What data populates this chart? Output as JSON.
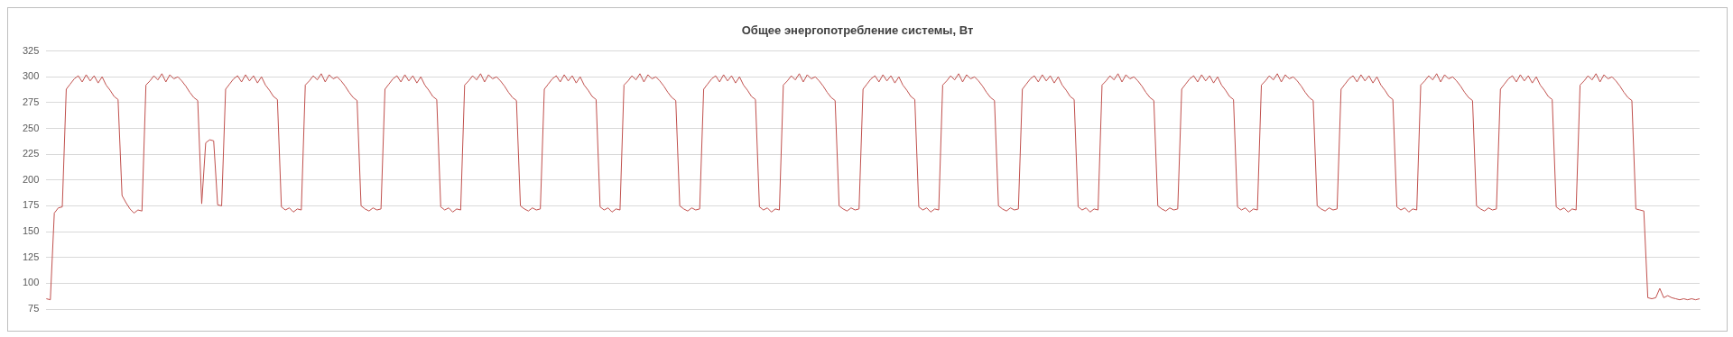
{
  "chart_data": {
    "type": "line",
    "title": "Общее энергопотребление системы, Вт",
    "categories": [
      null,
      null,
      null,
      null,
      null,
      null,
      null,
      null,
      null,
      null,
      null,
      null,
      null,
      null,
      null,
      null,
      null,
      null,
      null,
      null,
      null,
      null,
      null,
      null,
      null,
      null,
      null,
      null,
      null,
      null,
      null,
      null,
      null,
      null,
      null,
      null,
      null,
      null,
      null,
      null,
      null,
      null,
      null,
      null,
      null,
      null,
      null,
      null,
      null,
      null,
      null,
      null,
      null,
      null,
      null,
      null,
      null,
      null,
      null,
      null,
      null,
      null,
      null,
      null,
      null,
      null,
      null,
      null,
      null,
      null,
      null,
      null,
      null,
      null,
      null,
      null,
      null,
      null,
      null,
      null,
      null,
      null,
      null,
      null,
      null,
      null,
      null,
      null,
      null,
      null,
      null,
      null,
      null,
      null,
      null,
      null,
      null,
      null,
      null,
      null,
      null,
      null,
      null,
      null,
      null,
      null,
      null,
      null,
      null,
      null,
      null,
      null,
      null,
      null,
      null,
      null,
      null,
      null,
      null,
      null,
      null,
      null,
      null,
      null,
      null,
      null,
      null,
      null,
      null,
      null,
      null,
      null,
      null,
      null,
      null,
      null,
      null,
      null,
      null,
      null,
      null,
      null,
      null,
      null,
      null,
      null,
      null,
      null,
      null,
      null,
      null,
      null,
      null,
      null,
      null,
      null,
      null,
      null,
      null,
      null,
      null,
      null,
      null,
      null,
      null,
      null,
      null,
      null,
      null,
      null,
      null,
      null,
      null,
      null,
      null,
      null,
      null,
      null,
      null,
      null,
      null,
      null,
      null,
      null,
      null,
      null,
      null,
      null,
      null,
      null,
      null,
      null,
      null,
      null,
      null,
      null,
      null,
      null,
      null,
      null,
      null,
      null,
      null,
      null,
      null,
      null,
      null,
      null,
      null,
      null,
      null,
      null,
      null,
      null,
      null,
      null,
      null,
      null,
      null,
      null,
      null,
      null,
      null,
      null,
      null,
      null,
      null,
      null,
      null,
      null,
      null,
      null,
      null,
      null,
      null,
      null,
      null,
      null,
      null,
      null,
      null,
      null,
      null,
      null,
      null,
      null,
      null,
      null,
      null,
      null,
      null,
      null,
      null,
      null,
      null,
      null,
      null,
      null,
      null,
      null,
      null,
      null,
      null,
      null,
      null,
      null,
      null,
      null,
      null,
      null,
      null,
      null,
      null,
      null,
      null,
      null,
      null,
      null,
      null,
      null,
      null,
      null,
      null,
      null,
      null,
      null,
      null,
      null,
      null,
      null,
      null,
      null,
      null,
      null,
      null,
      null,
      null,
      null,
      null,
      null,
      null,
      null,
      null,
      null,
      null,
      null,
      null,
      null,
      null,
      null,
      null,
      null,
      null,
      null,
      null,
      null,
      null,
      null,
      null,
      null,
      null,
      null,
      null,
      null,
      null,
      null,
      null,
      null,
      null,
      null,
      null,
      null,
      null,
      null,
      null,
      null,
      null,
      null,
      null,
      null,
      null,
      null,
      null,
      null,
      null,
      null,
      null,
      null,
      null,
      null,
      null,
      null,
      null,
      null,
      null,
      null,
      null,
      null,
      null,
      null,
      null,
      null,
      null,
      null,
      null,
      null,
      null,
      null,
      null,
      null,
      null,
      null,
      null,
      null,
      null,
      null,
      null,
      null,
      null,
      null,
      null,
      null,
      null,
      null,
      null,
      null,
      null,
      null,
      null,
      null,
      null,
      null,
      null,
      null,
      null,
      null,
      null,
      null,
      null,
      null,
      null,
      null,
      null,
      null,
      null,
      null,
      null,
      null,
      null,
      null,
      null,
      null,
      null,
      null,
      null,
      null
    ],
    "series": [
      {
        "color": "#c0504d",
        "values": [
          85,
          84,
          168,
          173,
          174,
          288,
          293,
          298,
          301,
          295,
          302,
          296,
          301,
          294,
          300,
          292,
          287,
          281,
          278,
          185,
          178,
          172,
          168,
          171,
          170,
          292,
          296,
          301,
          297,
          303,
          295,
          302,
          298,
          300,
          296,
          291,
          285,
          280,
          277,
          177,
          236,
          239,
          238,
          176,
          175,
          288,
          293,
          298,
          301,
          295,
          302,
          296,
          301,
          294,
          300,
          292,
          287,
          281,
          278,
          174,
          171,
          173,
          169,
          172,
          171,
          292,
          296,
          301,
          297,
          303,
          295,
          302,
          298,
          300,
          296,
          291,
          285,
          280,
          277,
          175,
          172,
          170,
          173,
          171,
          172,
          288,
          293,
          298,
          301,
          295,
          302,
          296,
          301,
          294,
          300,
          292,
          287,
          281,
          278,
          174,
          171,
          173,
          169,
          172,
          171,
          292,
          296,
          301,
          297,
          303,
          295,
          302,
          298,
          300,
          296,
          291,
          285,
          280,
          277,
          175,
          172,
          170,
          173,
          171,
          172,
          288,
          293,
          298,
          301,
          295,
          302,
          296,
          301,
          294,
          300,
          292,
          287,
          281,
          278,
          174,
          171,
          173,
          169,
          172,
          171,
          292,
          296,
          301,
          297,
          303,
          295,
          302,
          298,
          300,
          296,
          291,
          285,
          280,
          277,
          175,
          172,
          170,
          173,
          171,
          172,
          288,
          293,
          298,
          301,
          295,
          302,
          296,
          301,
          294,
          300,
          292,
          287,
          281,
          278,
          174,
          171,
          173,
          169,
          172,
          171,
          292,
          296,
          301,
          297,
          303,
          295,
          302,
          298,
          300,
          296,
          291,
          285,
          280,
          277,
          175,
          172,
          170,
          173,
          171,
          172,
          288,
          293,
          298,
          301,
          295,
          302,
          296,
          301,
          294,
          300,
          292,
          287,
          281,
          278,
          174,
          171,
          173,
          169,
          172,
          171,
          292,
          296,
          301,
          297,
          303,
          295,
          302,
          298,
          300,
          296,
          291,
          285,
          280,
          277,
          175,
          172,
          170,
          173,
          171,
          172,
          288,
          293,
          298,
          301,
          295,
          302,
          296,
          301,
          294,
          300,
          292,
          287,
          281,
          278,
          174,
          171,
          173,
          169,
          172,
          171,
          292,
          296,
          301,
          297,
          303,
          295,
          302,
          298,
          300,
          296,
          291,
          285,
          280,
          277,
          175,
          172,
          170,
          173,
          171,
          172,
          288,
          293,
          298,
          301,
          295,
          302,
          296,
          301,
          294,
          300,
          292,
          287,
          281,
          278,
          174,
          171,
          173,
          169,
          172,
          171,
          292,
          296,
          301,
          297,
          303,
          295,
          302,
          298,
          300,
          296,
          291,
          285,
          280,
          277,
          175,
          172,
          170,
          173,
          171,
          172,
          288,
          293,
          298,
          301,
          295,
          302,
          296,
          301,
          294,
          300,
          292,
          287,
          281,
          278,
          174,
          171,
          173,
          169,
          172,
          171,
          292,
          296,
          301,
          297,
          303,
          295,
          302,
          298,
          300,
          296,
          291,
          285,
          280,
          277,
          175,
          172,
          170,
          173,
          171,
          172,
          288,
          293,
          298,
          301,
          295,
          302,
          296,
          301,
          294,
          300,
          292,
          287,
          281,
          278,
          174,
          171,
          173,
          169,
          172,
          171,
          292,
          296,
          301,
          297,
          303,
          295,
          302,
          298,
          300,
          296,
          291,
          285,
          280,
          277,
          172,
          171,
          170,
          86,
          85,
          86,
          95,
          86,
          88,
          86,
          85,
          84,
          85,
          84,
          85,
          84,
          85
        ]
      }
    ],
    "ylim": [
      75,
      325
    ],
    "yticks": [
      75,
      100,
      125,
      150,
      175,
      200,
      225,
      250,
      275,
      300,
      325
    ],
    "grid": "y",
    "legend": false,
    "tick_labels": "y",
    "marker": "none",
    "line_style": "solid"
  }
}
